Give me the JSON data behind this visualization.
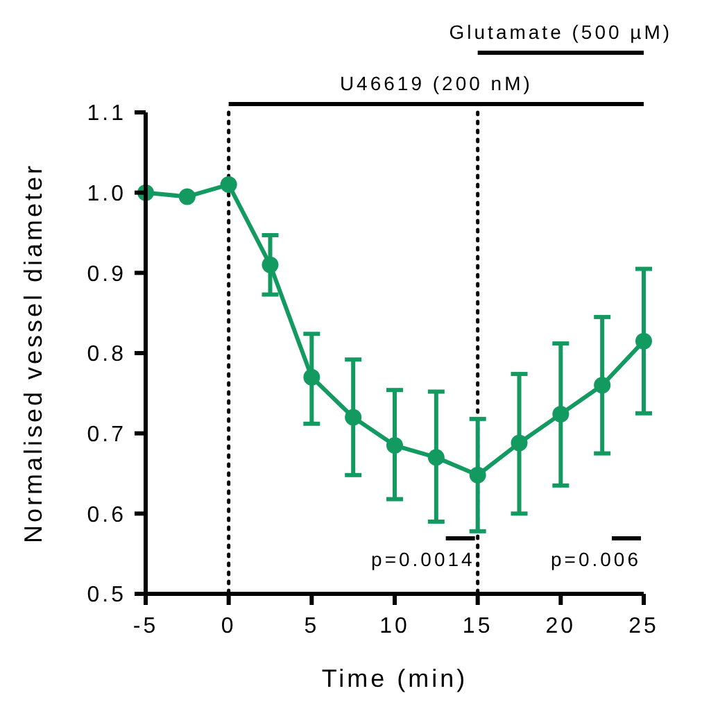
{
  "chart_data": {
    "type": "line",
    "xlabel": "Time (min)",
    "ylabel": "Normalised vessel diameter",
    "x": [
      -5,
      -2.5,
      0,
      2.5,
      5,
      7.5,
      10,
      12.5,
      15,
      17.5,
      20,
      22.5,
      25
    ],
    "series": [
      {
        "color": "#129a61",
        "values": [
          1.0,
          0.995,
          1.01,
          0.91,
          0.77,
          0.72,
          0.685,
          0.67,
          0.648,
          0.688,
          0.724,
          0.76,
          0.815
        ],
        "errors": [
          null,
          null,
          null,
          [
            0.873,
            0.947
          ],
          [
            0.712,
            0.824
          ],
          [
            0.648,
            0.792
          ],
          [
            0.618,
            0.754
          ],
          [
            0.59,
            0.752
          ],
          [
            0.578,
            0.718
          ],
          [
            0.6,
            0.774
          ],
          [
            0.635,
            0.812
          ],
          [
            0.675,
            0.845
          ],
          [
            0.725,
            0.905
          ]
        ]
      }
    ],
    "xlim": [
      -5,
      25
    ],
    "xticks": [
      -5,
      0,
      5,
      10,
      15,
      20,
      25
    ],
    "ylim": [
      0.5,
      1.1
    ],
    "yticks": [
      0.5,
      0.6,
      0.7,
      0.8,
      0.9,
      {
        "value": 1.0,
        "label": "1.0"
      },
      1.1
    ],
    "marker": "circle",
    "line_style": "solid",
    "grid": false,
    "ref_lines": [
      {
        "axis": "x",
        "value": 0,
        "color": "#000000",
        "line_style": "dotted"
      },
      {
        "axis": "x",
        "value": 15,
        "color": "#000000",
        "line_style": "dotted"
      }
    ],
    "annotations": [
      "U46619 (200 nM)",
      "Glutamate (500 µM)",
      "p=0.0014",
      "p=0.006"
    ]
  }
}
